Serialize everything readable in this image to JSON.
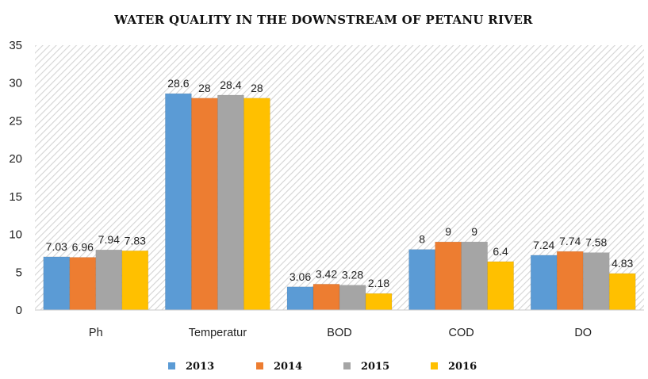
{
  "chart_data": {
    "type": "bar",
    "title": "WATER QUALITY IN THE DOWNSTREAM OF PETANU RIVER",
    "xlabel": "",
    "ylabel": "",
    "categories": [
      "Ph",
      "Temperatur",
      "BOD",
      "COD",
      "DO"
    ],
    "ylim": [
      0,
      35
    ],
    "yticks": [
      "0",
      "5",
      "10",
      "15",
      "20",
      "25",
      "30",
      "35"
    ],
    "grid": false,
    "legend_position": "bottom",
    "series": [
      {
        "name": "2013",
        "color": "#5b9bd5",
        "values": [
          7.03,
          28.6,
          3.06,
          8,
          7.24
        ],
        "labels": [
          "7.03",
          "28.6",
          "3.06",
          "8",
          "7.24"
        ]
      },
      {
        "name": "2014",
        "color": "#ed7d31",
        "values": [
          6.96,
          28,
          3.42,
          9,
          7.74
        ],
        "labels": [
          "6.96",
          "28",
          "3.42",
          "9",
          "7.74"
        ]
      },
      {
        "name": "2015",
        "color": "#a5a5a5",
        "values": [
          7.94,
          28.4,
          3.28,
          9,
          7.58
        ],
        "labels": [
          "7.94",
          "28.4",
          "3.28",
          "9",
          "7.58"
        ]
      },
      {
        "name": "2016",
        "color": "#ffc000",
        "values": [
          7.83,
          28,
          2.18,
          6.4,
          4.83
        ],
        "labels": [
          "7.83",
          "28",
          "2.18",
          "6.4",
          "4.83"
        ]
      }
    ]
  }
}
